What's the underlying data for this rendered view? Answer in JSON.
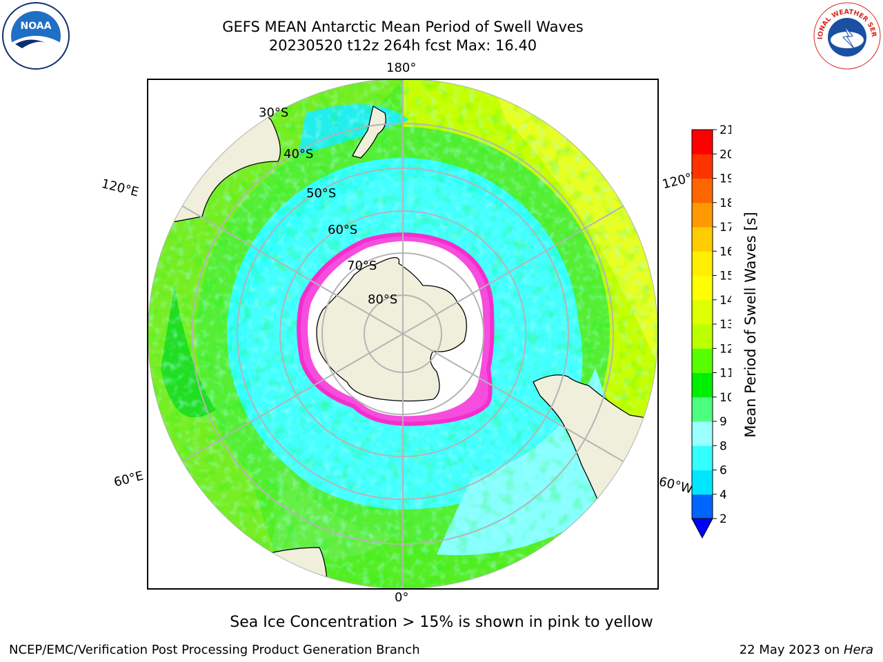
{
  "header": {
    "title_line1": "GEFS MEAN Antarctic Mean Period of Swell Waves",
    "title_line2": "20230520 t12z 264h fcst   Max: 16.40"
  },
  "logos": [
    {
      "name": "noaa-logo",
      "text": "NOAA",
      "colors": [
        "#1f6fc5",
        "#0b2e6e"
      ]
    },
    {
      "name": "nws-logo",
      "text": "NATIONAL WEATHER SERVICE",
      "colors": [
        "#d7261e",
        "#1a4fa3"
      ]
    }
  ],
  "map": {
    "projection": "south-polar-stereographic",
    "center_lon": 0,
    "lat_labels": [
      "30°S",
      "40°S",
      "50°S",
      "60°S",
      "70°S",
      "80°S"
    ],
    "lon_labels": {
      "top": "180°",
      "bottom": "0°",
      "upper_left": "120°E",
      "upper_right": "120°W",
      "lower_left": "60°E",
      "lower_right": "60°W"
    },
    "colors": {
      "land": "#efefdc",
      "coast": "#000000",
      "grid": "#b4b4b4",
      "ice_edge": "#ff33cc"
    }
  },
  "colorbar": {
    "label": "Mean Period of Swell Waves [s]",
    "ticks": [
      "2",
      "4",
      "6",
      "8",
      "9",
      "10",
      "11",
      "12",
      "13",
      "14",
      "15",
      "16",
      "17",
      "18",
      "19",
      "20",
      "21"
    ],
    "colors": [
      "#0064ff",
      "#00e6ff",
      "#33ffff",
      "#99ffff",
      "#4cff80",
      "#00ee00",
      "#55ff00",
      "#bbff00",
      "#ddff00",
      "#ffff00",
      "#ffee00",
      "#ffcc00",
      "#ff9900",
      "#ff6600",
      "#ff3300",
      "#ff0000"
    ],
    "under_color": "#0000ff"
  },
  "footer": {
    "ice_note": "Sea Ice Concentration > 15% is shown in pink to yellow",
    "credit": "NCEP/EMC/Verification Post Processing Product Generation Branch",
    "date_text": "22 May 2023 on ",
    "machine": "Hera"
  }
}
